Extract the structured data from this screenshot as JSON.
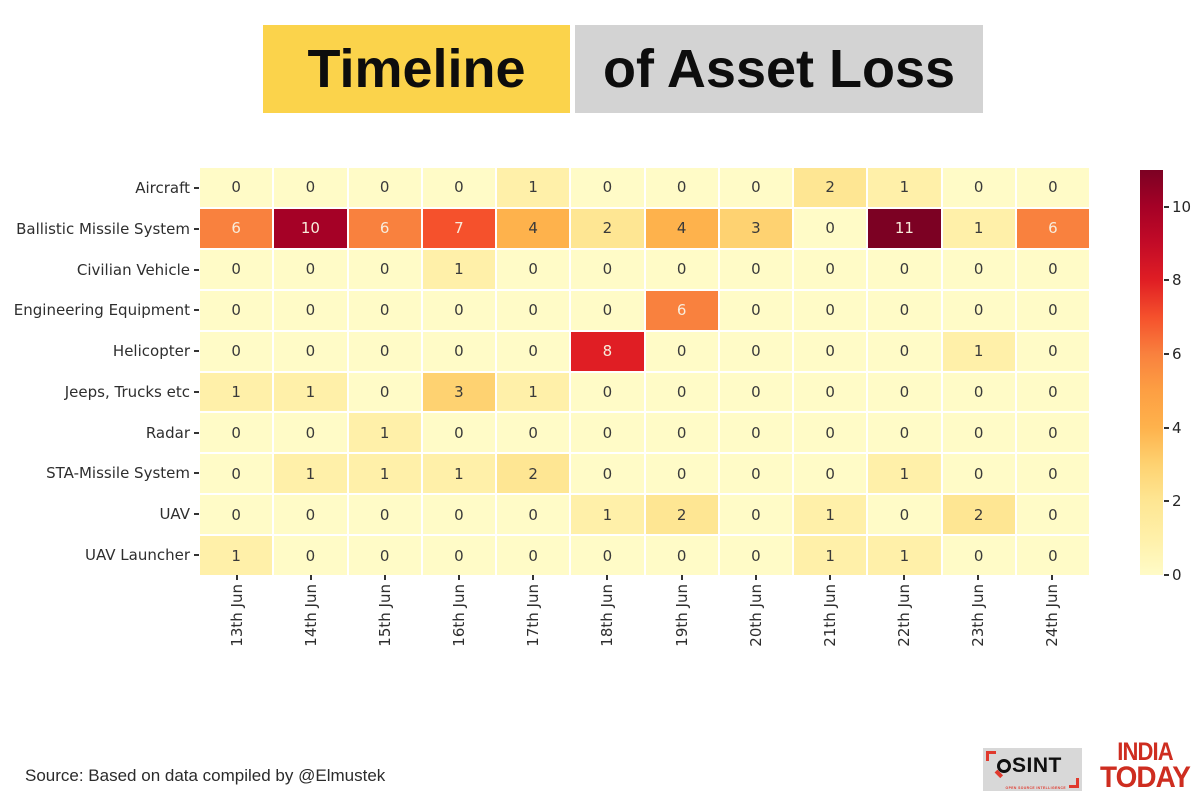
{
  "title": {
    "part1": "Timeline",
    "part2": "of Asset Loss",
    "part1_bg": "#fbd34b",
    "part2_bg": "#d3d3d3"
  },
  "chart_data": {
    "type": "heatmap",
    "x_categories": [
      "13th Jun",
      "14th Jun",
      "15th Jun",
      "16th Jun",
      "17th Jun",
      "18th Jun",
      "19th Jun",
      "20th Jun",
      "21th Jun",
      "22th Jun",
      "23th Jun",
      "24th Jun"
    ],
    "y_categories": [
      "Aircraft",
      "Ballistic Missile System",
      "Civilian Vehicle",
      "Engineering Equipment",
      "Helicopter",
      "Jeeps, Trucks etc",
      "Radar",
      "STA-Missile System",
      "UAV",
      "UAV Launcher"
    ],
    "matrix": [
      [
        0,
        0,
        0,
        0,
        1,
        0,
        0,
        0,
        2,
        1,
        0,
        0
      ],
      [
        6,
        10,
        6,
        7,
        4,
        2,
        4,
        3,
        0,
        11,
        1,
        6
      ],
      [
        0,
        0,
        0,
        1,
        0,
        0,
        0,
        0,
        0,
        0,
        0,
        0
      ],
      [
        0,
        0,
        0,
        0,
        0,
        0,
        6,
        0,
        0,
        0,
        0,
        0
      ],
      [
        0,
        0,
        0,
        0,
        0,
        8,
        0,
        0,
        0,
        0,
        1,
        0
      ],
      [
        1,
        1,
        0,
        3,
        1,
        0,
        0,
        0,
        0,
        0,
        0,
        0
      ],
      [
        0,
        0,
        1,
        0,
        0,
        0,
        0,
        0,
        0,
        0,
        0,
        0
      ],
      [
        0,
        1,
        1,
        1,
        2,
        0,
        0,
        0,
        0,
        1,
        0,
        0
      ],
      [
        0,
        0,
        0,
        0,
        0,
        1,
        2,
        0,
        1,
        0,
        2,
        0
      ],
      [
        1,
        0,
        0,
        0,
        0,
        0,
        0,
        0,
        1,
        1,
        0,
        0
      ]
    ],
    "vmin": 0,
    "vmax": 11,
    "colorbar_ticks": [
      0,
      2,
      4,
      6,
      8,
      10
    ],
    "palette": [
      "#fffbc7",
      "#fff0a9",
      "#fee693",
      "#fed271",
      "#feb24c",
      "#fd9f43",
      "#f9813e",
      "#f5512c",
      "#e01e24",
      "#c30b27",
      "#a50126",
      "#7c0123"
    ],
    "light_text_threshold": 6,
    "cell_text_dark": "#3a3a3a",
    "cell_text_light": "#f8ecdb"
  },
  "footer": {
    "source": "Source: Based on data compiled by @Elmustek"
  },
  "logos": {
    "osint": {
      "word": "SINT",
      "subtext": "OPEN SOURCE INTELLIGENCE"
    },
    "india_today": {
      "line1": "INDIA",
      "line2": "TODAY"
    }
  }
}
